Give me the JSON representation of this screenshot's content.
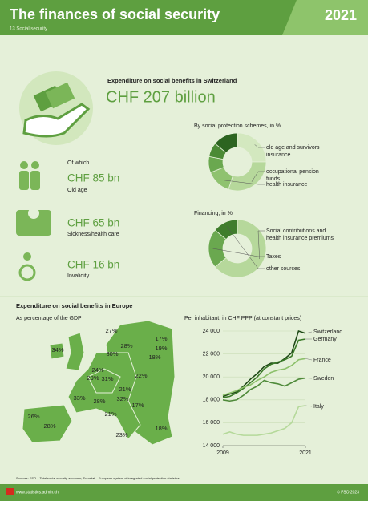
{
  "header": {
    "title": "The finances of social security",
    "year": "2021",
    "subtitle": "13 Social security"
  },
  "switzerland": {
    "title": "Expenditure on social benefits in Switzerland",
    "total": "CHF 207 billion",
    "of_which": "Of which",
    "items": [
      {
        "amount": "CHF 85 bn",
        "label": "Old age"
      },
      {
        "amount": "CHF 65 bn",
        "label": "Sickness/health care"
      },
      {
        "amount": "CHF 16 bn",
        "label": "Invalidity"
      }
    ]
  },
  "europe": {
    "title": "Expenditure on social benefits in Europe",
    "map_title": "As percentage of the GDP",
    "map_labels": [
      "27%",
      "17%",
      "28%",
      "34%",
      "19%",
      "30%",
      "18%",
      "24%",
      "29%",
      "31%",
      "22%",
      "21%",
      "33%",
      "28%",
      "32%",
      "17%",
      "26%",
      "21%",
      "28%",
      "23%",
      "18%"
    ]
  },
  "chart_data": [
    {
      "type": "pie",
      "title": "By social protection schemes, in %",
      "categories": [
        "old age and survivors insurance",
        "occupational pension funds",
        "health insurance",
        null,
        null,
        null
      ],
      "values": [
        25,
        30,
        14,
        9,
        8,
        14
      ],
      "colors": [
        "#d3e8bf",
        "#b6d89b",
        "#8fc26f",
        "#6aa84f",
        "#4b8a35",
        "#2c6420"
      ]
    },
    {
      "type": "pie",
      "title": "Financing, in %",
      "categories": [
        "Social contributions and health insurance premiums",
        "Taxes",
        "other sources"
      ],
      "values": [
        64,
        22,
        14
      ],
      "colors": [
        "#b6d89b",
        "#6aa84f",
        "#3f7d2c"
      ]
    },
    {
      "type": "line",
      "title": "Per inhabitant, in CHF PPP (at constant prices)",
      "x": [
        2009,
        2010,
        2011,
        2012,
        2013,
        2014,
        2015,
        2016,
        2017,
        2018,
        2019,
        2020,
        2021
      ],
      "xlim": [
        2009,
        2021
      ],
      "xticks": [
        2009,
        2021
      ],
      "ylim": [
        14000,
        24000
      ],
      "yticks": [
        {
          "value": 14000,
          "label": "14 000"
        },
        {
          "value": 16000,
          "label": "16 000"
        },
        {
          "value": 18000,
          "label": "18 000"
        },
        {
          "value": 20000,
          "label": "20 000"
        },
        {
          "value": 22000,
          "label": "22 000"
        },
        {
          "value": 24000,
          "label": "24 000"
        }
      ],
      "grid": true,
      "series": [
        {
          "name": "Switzerland",
          "color": "#1f4a17",
          "values": [
            18300,
            18500,
            18700,
            19200,
            19800,
            20300,
            20900,
            21200,
            21200,
            21600,
            22100,
            24000,
            23800
          ]
        },
        {
          "name": "Germany",
          "color": "#3a7a28",
          "values": [
            18200,
            18300,
            18600,
            19000,
            19500,
            20000,
            20700,
            21100,
            21300,
            21500,
            21800,
            23200,
            23300
          ]
        },
        {
          "name": "France",
          "color": "#8cc06a",
          "values": [
            18400,
            18600,
            18800,
            19100,
            19300,
            19700,
            20000,
            20400,
            20600,
            20700,
            21000,
            21500,
            21600
          ]
        },
        {
          "name": "Sweden",
          "color": "#4f8a3a",
          "values": [
            18000,
            17900,
            18000,
            18400,
            18900,
            19200,
            19700,
            19500,
            19400,
            19200,
            19500,
            19800,
            19900
          ]
        },
        {
          "name": "Italy",
          "color": "#b5d99a",
          "values": [
            15000,
            15200,
            15000,
            14900,
            14900,
            14900,
            15000,
            15100,
            15300,
            15500,
            16000,
            17400,
            17500
          ]
        }
      ]
    }
  ],
  "footer": {
    "sources": "Sources: FSO – Total social security accounts; Eurostat – European system of integrated social protection statistics",
    "site": "www.statistics.admin.ch",
    "copyright": "© FSO 2023"
  }
}
